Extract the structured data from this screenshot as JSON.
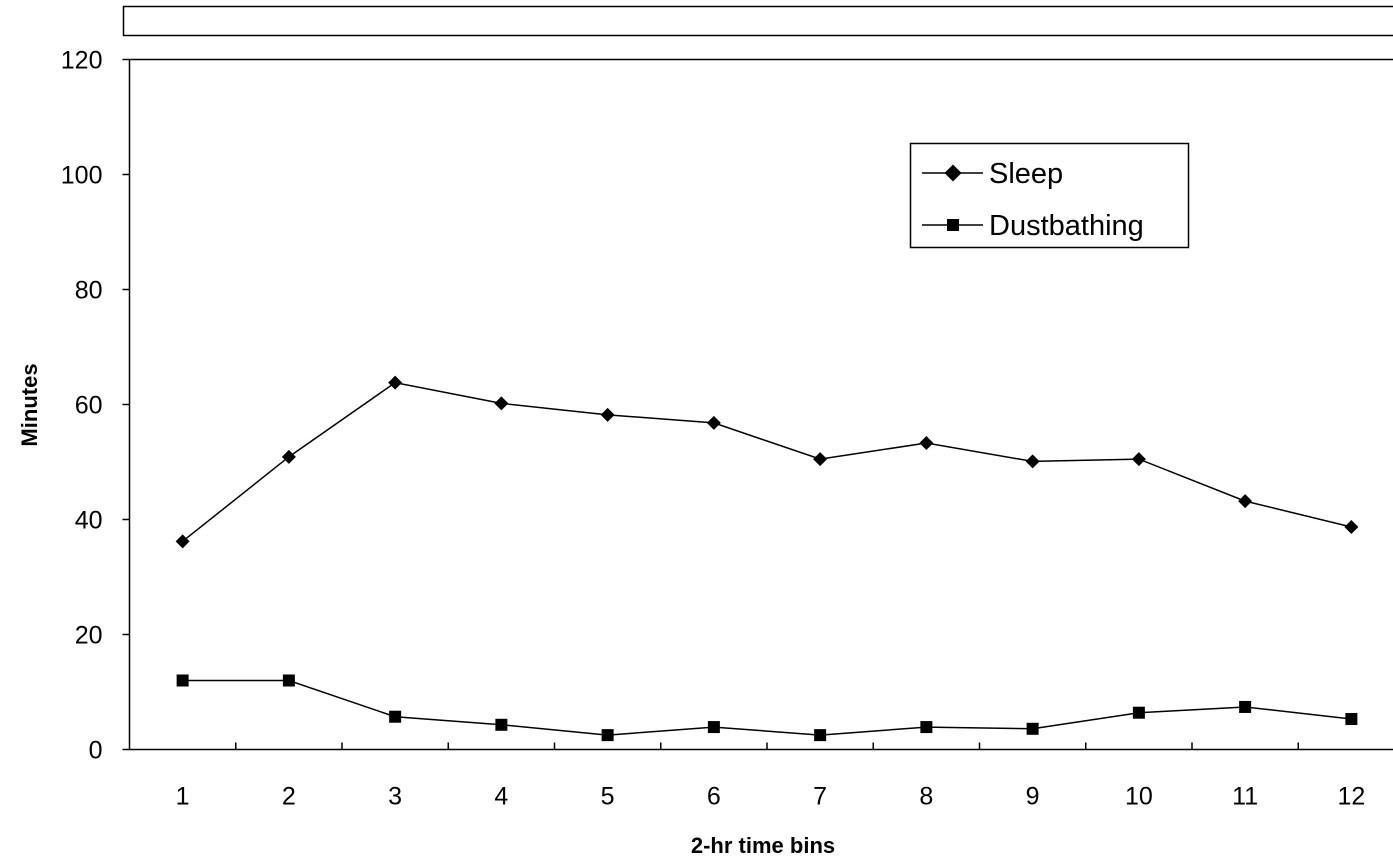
{
  "chart_data": {
    "type": "line",
    "title": "",
    "xlabel": "2-hr time bins",
    "ylabel": "Minutes",
    "categories": [
      "1",
      "2",
      "3",
      "4",
      "5",
      "6",
      "7",
      "8",
      "9",
      "10",
      "11",
      "12"
    ],
    "y_ticks": [
      "0",
      "20",
      "40",
      "60",
      "80",
      "100",
      "120"
    ],
    "ylim": [
      0,
      120
    ],
    "grid": false,
    "legend_position": "top-right",
    "series": [
      {
        "name": "Sleep",
        "marker": "diamond",
        "color": "#000000",
        "values": [
          36.2,
          50.9,
          63.8,
          60.2,
          58.2,
          56.8,
          50.5,
          53.3,
          50.1,
          50.5,
          43.2,
          38.7
        ]
      },
      {
        "name": "Dustbathing",
        "marker": "square",
        "color": "#000000",
        "values": [
          12.0,
          12.0,
          5.7,
          4.3,
          2.5,
          3.9,
          2.5,
          3.9,
          3.6,
          6.4,
          7.4,
          5.3
        ]
      }
    ]
  }
}
